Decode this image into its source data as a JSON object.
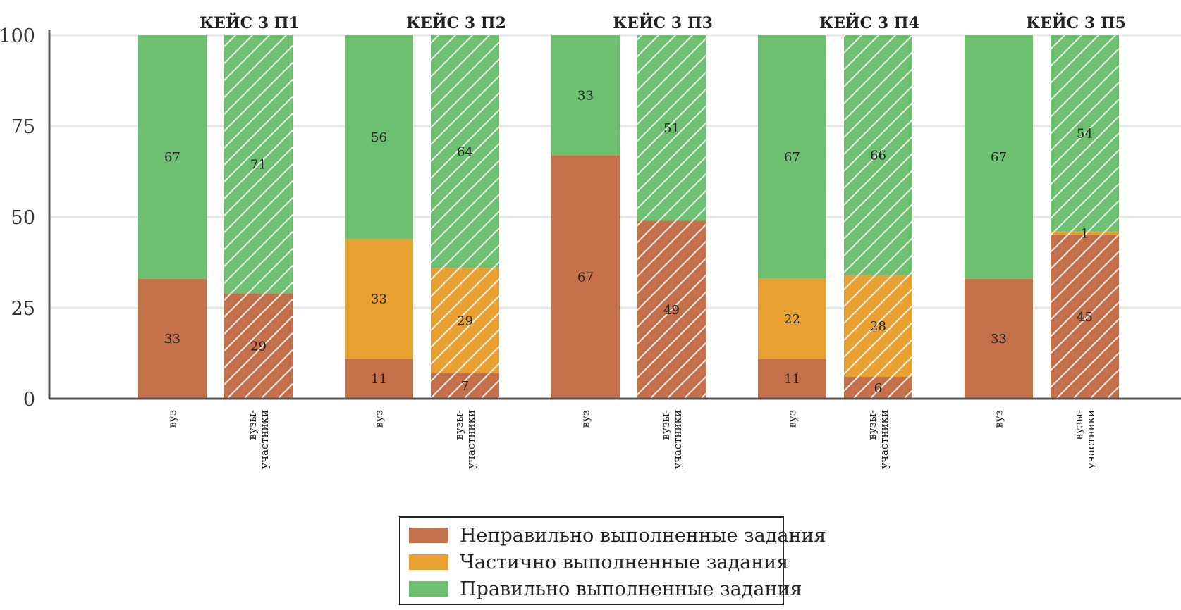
{
  "chart_data": {
    "type": "bar",
    "stacked": true,
    "ylim": [
      0,
      100
    ],
    "yticks": [
      0,
      25,
      50,
      75,
      100
    ],
    "grid": true,
    "panels": [
      {
        "title": "КЕЙС 3 П1",
        "bars": [
          {
            "label": "вуз",
            "hatched": false,
            "values": [
              33,
              0,
              67
            ],
            "labels": [
              "33",
              "",
              "67"
            ]
          },
          {
            "label": "вузы-участники",
            "hatched": true,
            "values": [
              29,
              0,
              71
            ],
            "labels": [
              "29",
              "",
              "71"
            ]
          }
        ]
      },
      {
        "title": "КЕЙС 3 П2",
        "bars": [
          {
            "label": "вуз",
            "hatched": false,
            "values": [
              11,
              33,
              56
            ],
            "labels": [
              "11",
              "33",
              "56"
            ]
          },
          {
            "label": "вузы-участники",
            "hatched": true,
            "values": [
              7,
              29,
              64
            ],
            "labels": [
              "7",
              "29",
              "64"
            ]
          }
        ]
      },
      {
        "title": "КЕЙС 3 П3",
        "bars": [
          {
            "label": "вуз",
            "hatched": false,
            "values": [
              67,
              0,
              33
            ],
            "labels": [
              "67",
              "",
              "33"
            ]
          },
          {
            "label": "вузы-участники",
            "hatched": true,
            "values": [
              49,
              0,
              51
            ],
            "labels": [
              "49",
              "",
              "51"
            ]
          }
        ]
      },
      {
        "title": "КЕЙС 3 П4",
        "bars": [
          {
            "label": "вуз",
            "hatched": false,
            "values": [
              11,
              22,
              67
            ],
            "labels": [
              "11",
              "22",
              "67"
            ]
          },
          {
            "label": "вузы-участники",
            "hatched": true,
            "values": [
              6,
              28,
              66
            ],
            "labels": [
              "6",
              "28",
              "66"
            ]
          }
        ]
      },
      {
        "title": "КЕЙС 3 П5",
        "bars": [
          {
            "label": "вуз",
            "hatched": false,
            "values": [
              33,
              0,
              67
            ],
            "labels": [
              "33",
              "",
              "67"
            ]
          },
          {
            "label": "вузы-участники",
            "hatched": true,
            "values": [
              45,
              1,
              54
            ],
            "labels": [
              "45",
              "1",
              "54"
            ]
          }
        ]
      }
    ],
    "legend": {
      "placement": "bottom-center",
      "items": [
        {
          "label": "Неправильно выполненные задания",
          "color": "#c4704a"
        },
        {
          "label": "Частично выполненные задания",
          "color": "#e8a030"
        },
        {
          "label": "Правильно выполненные задания",
          "color": "#6cc070"
        }
      ]
    }
  }
}
